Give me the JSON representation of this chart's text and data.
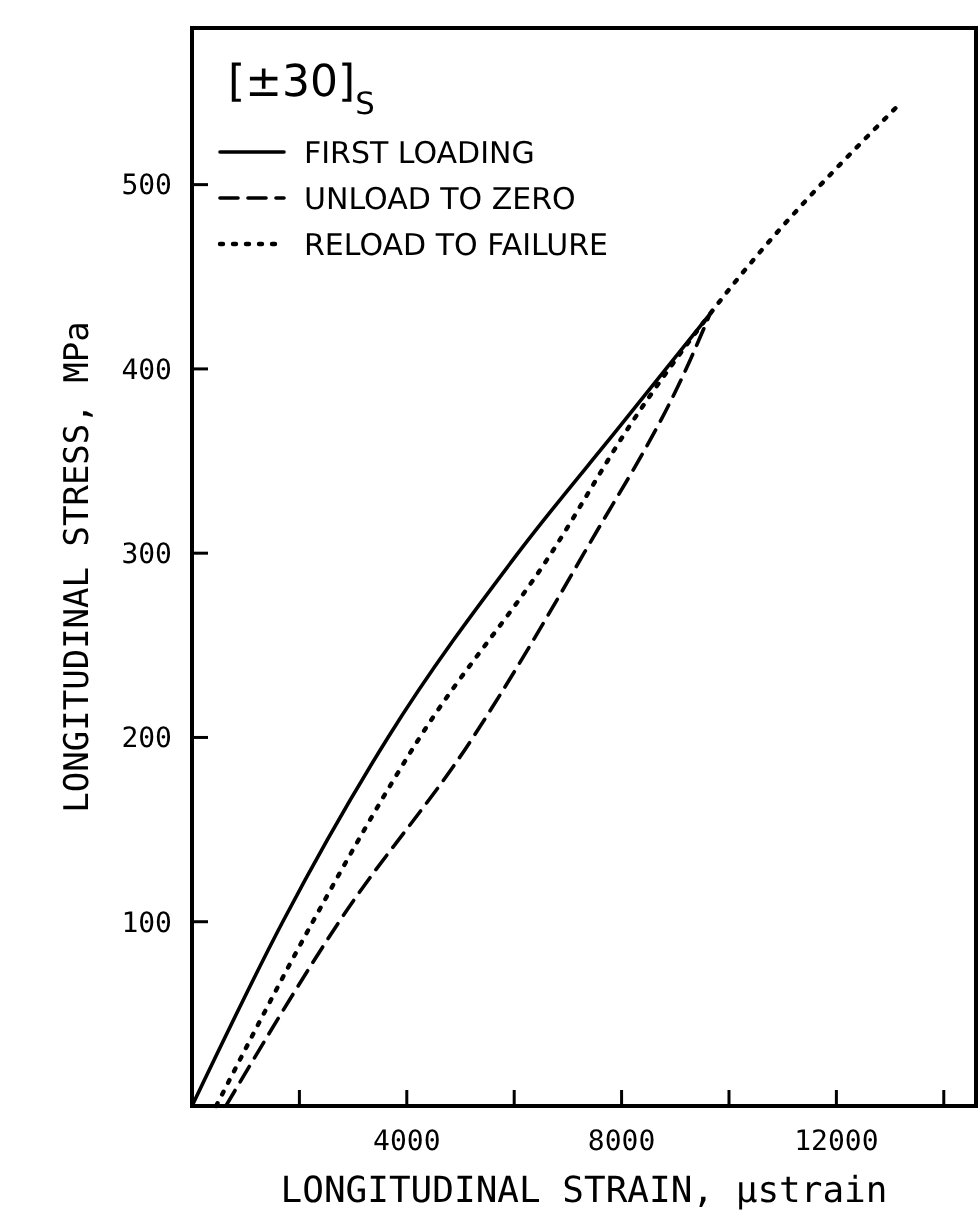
{
  "chart_data": {
    "type": "line",
    "xlabel": "LONGITUDINAL STRAIN, μstrain",
    "ylabel": "LONGITUDINAL STRESS, MPa",
    "annotations": [
      "[±30]$_{S}$"
    ],
    "xlim": [
      0,
      14600
    ],
    "ylim": [
      0,
      585
    ],
    "xticks": [
      {
        "value": 2000,
        "label": null
      },
      4000,
      {
        "value": 6000,
        "label": null
      },
      8000,
      {
        "value": 10000,
        "label": null
      },
      12000,
      {
        "value": 14000,
        "label": null
      }
    ],
    "yticks": [
      100,
      200,
      300,
      400,
      500
    ],
    "legend": "top left",
    "grid": false,
    "series": [
      {
        "name": "FIRST LOADING",
        "color": "#000000",
        "line_style": "solid",
        "x": [
          0,
          1690,
          3650,
          6070,
          8000,
          9650
        ],
        "values": [
          0,
          100,
          200,
          300,
          370,
          430
        ]
      },
      {
        "name": "UNLOAD TO ZERO",
        "color": "#000000",
        "line_style": "dashed",
        "x": [
          630,
          2740,
          5210,
          7300,
          9280,
          9650
        ],
        "values": [
          0,
          100,
          199,
          300,
          405,
          430
        ]
      },
      {
        "name": "RELOAD TO FAILURE",
        "color": "#000000",
        "line_style": "dotted",
        "x": [
          450,
          2250,
          4220,
          6690,
          8170,
          9650,
          13220
        ],
        "values": [
          0,
          100,
          199,
          300,
          370,
          430,
          545
        ]
      }
    ]
  }
}
